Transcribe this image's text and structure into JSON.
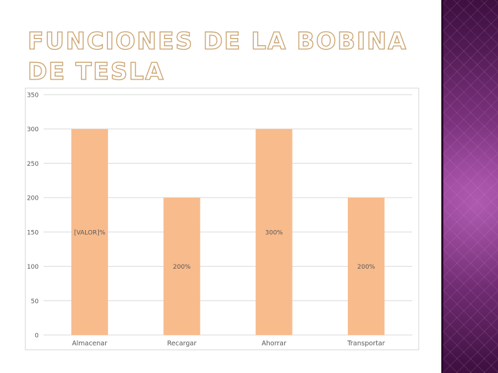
{
  "slide": {
    "title": "FUNCIONES DE LA BOBINA DE TESLA"
  },
  "colors": {
    "bar": "#f8bb8c",
    "grid": "#d9d9d9",
    "tick_text": "#595959",
    "side_panel": "#7a2f7c"
  },
  "chart_data": {
    "type": "bar",
    "title": "",
    "xlabel": "",
    "ylabel": "",
    "categories": [
      "Almacenar",
      "Recargar",
      "Ahorrar",
      "Transportar"
    ],
    "values": [
      300,
      200,
      300,
      200
    ],
    "data_labels": [
      "[VALOR]%",
      "200%",
      "300%",
      "200%"
    ],
    "label_values": [
      150,
      100,
      150,
      100
    ],
    "ylim": [
      0,
      350
    ],
    "yticks": [
      0,
      50,
      100,
      150,
      200,
      250,
      300,
      350
    ],
    "grid": true,
    "legend": "none"
  }
}
